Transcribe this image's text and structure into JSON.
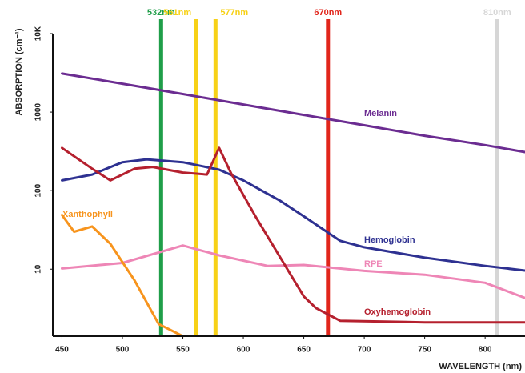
{
  "chart_data": {
    "type": "line",
    "x_label": "WAVELENGTH (nm)",
    "y_label": "ABSORPTION (cm⁻¹)",
    "log_y": true,
    "xlim": [
      442.4,
      833
    ],
    "ylim": [
      1.4,
      10000
    ],
    "xticks": [
      450,
      500,
      550,
      600,
      650,
      700,
      750,
      800
    ],
    "yticks": [
      10,
      100,
      1000,
      {
        "value": 10000,
        "label": "10K"
      }
    ],
    "lasers": [
      {
        "value": 532,
        "label": "532nm",
        "color": "#1f9e49"
      },
      {
        "value": 561,
        "label": "561nm",
        "color": "#f7d117"
      },
      {
        "value": 577,
        "label": "577nm",
        "color": "#f7d117"
      },
      {
        "value": 670,
        "label": "670nm",
        "color": "#e1251b"
      },
      {
        "value": 810,
        "label": "810nm",
        "color": "#d6d6d6"
      }
    ],
    "series": [
      {
        "name": "Melanin",
        "color": "#6b2c91",
        "x": [
          450,
          500,
          550,
          600,
          650,
          700,
          750,
          800,
          833
        ],
        "values": [
          3100,
          2300,
          1700,
          1250,
          920,
          680,
          500,
          380,
          310
        ]
      },
      {
        "name": "Hemoglobin",
        "color": "#2e3191",
        "x": [
          450,
          475,
          500,
          520,
          550,
          580,
          600,
          630,
          650,
          680,
          700,
          750,
          800,
          833
        ],
        "values": [
          135,
          160,
          230,
          250,
          230,
          185,
          135,
          75,
          47,
          23,
          19,
          14,
          11,
          9.6
        ]
      },
      {
        "name": "RPE",
        "color": "#ee86b6",
        "x": [
          450,
          500,
          550,
          580,
          620,
          650,
          700,
          750,
          800,
          833
        ],
        "values": [
          10.2,
          12,
          20,
          15,
          11,
          11.3,
          9.5,
          8.5,
          6.7,
          4.3
        ]
      },
      {
        "name": "Oxyhemoglobin",
        "color": "#b5202e",
        "x": [
          450,
          475,
          490,
          510,
          525,
          550,
          570,
          580,
          590,
          610,
          630,
          650,
          660,
          680,
          750,
          833
        ],
        "values": [
          350,
          190,
          135,
          190,
          200,
          170,
          160,
          350,
          165,
          47,
          14.5,
          4.5,
          3.2,
          2.2,
          2.1,
          2.1
        ]
      },
      {
        "name": "Xanthophyll",
        "color": "#f7941d",
        "x": [
          450,
          460,
          475,
          490,
          510,
          530,
          550
        ],
        "values": [
          49,
          30,
          35,
          21,
          7.2,
          2,
          1.4
        ]
      }
    ]
  }
}
